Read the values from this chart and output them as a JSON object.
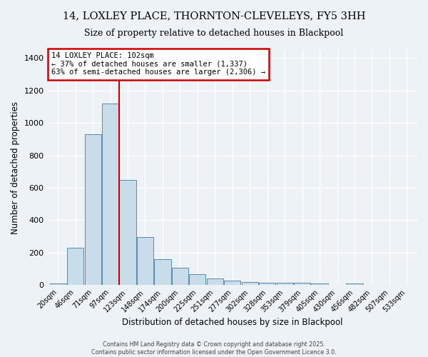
{
  "title_line1": "14, LOXLEY PLACE, THORNTON-CLEVELEYS, FY5 3HH",
  "title_line2": "Size of property relative to detached houses in Blackpool",
  "xlabel": "Distribution of detached houses by size in Blackpool",
  "ylabel": "Number of detached properties",
  "categories": [
    "20sqm",
    "46sqm",
    "71sqm",
    "97sqm",
    "123sqm",
    "148sqm",
    "174sqm",
    "200sqm",
    "225sqm",
    "251sqm",
    "277sqm",
    "302sqm",
    "328sqm",
    "353sqm",
    "379sqm",
    "405sqm",
    "430sqm",
    "456sqm",
    "482sqm",
    "507sqm",
    "533sqm"
  ],
  "values": [
    10,
    230,
    930,
    1120,
    650,
    295,
    160,
    105,
    65,
    40,
    25,
    20,
    15,
    15,
    15,
    8,
    0,
    10,
    0,
    0,
    0
  ],
  "bar_color": "#c9dcea",
  "bar_edge_color": "#5a8ab0",
  "vline_x_index": 3.5,
  "vline_color": "#cc0000",
  "annotation_text": "14 LOXLEY PLACE: 102sqm\n← 37% of detached houses are smaller (1,337)\n63% of semi-detached houses are larger (2,306) →",
  "annotation_box_color": "#cc0000",
  "ylim": [
    0,
    1450
  ],
  "yticks": [
    0,
    200,
    400,
    600,
    800,
    1000,
    1200,
    1400
  ],
  "background_color": "#edf2f7",
  "grid_color": "#ffffff",
  "footer_line1": "Contains HM Land Registry data © Crown copyright and database right 2025.",
  "footer_line2": "Contains public sector information licensed under the Open Government Licence 3.0."
}
